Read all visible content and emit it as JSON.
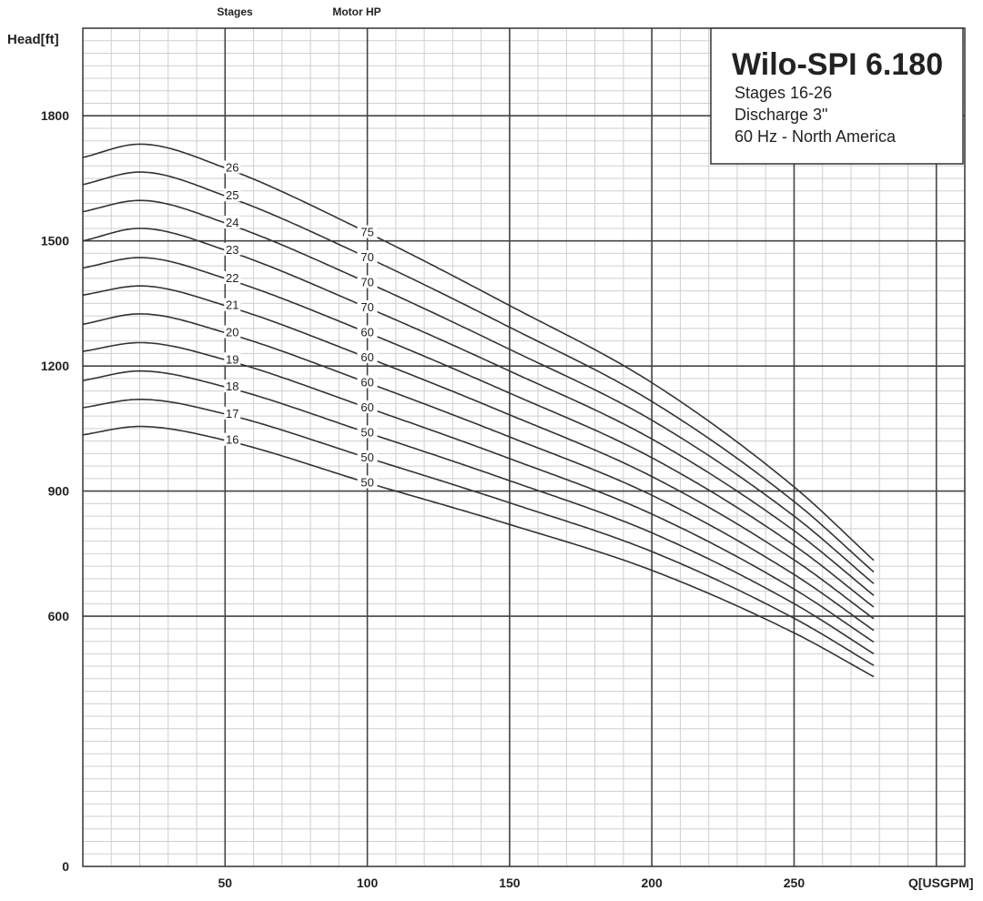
{
  "chart_data": {
    "type": "line",
    "title": "Wilo-SPI 6.180",
    "info_lines": [
      "Stages 16-26",
      "Discharge 3\"",
      "60 Hz - North America"
    ],
    "ylabel": "Head[ft]",
    "xlabel": "Q[USGPM]",
    "top_labels": {
      "stages": "Stages",
      "motor_hp": "Motor HP"
    },
    "xlim": [
      0,
      310
    ],
    "ylim": [
      0,
      2010
    ],
    "x_ticks": [
      50,
      100,
      150,
      200,
      250
    ],
    "y_ticks": [
      0,
      600,
      900,
      1200,
      1500,
      1800
    ],
    "grid": true,
    "stage_label_x": 50,
    "hp_label_x": 100,
    "series": [
      {
        "name": "16",
        "hp": "50",
        "points": [
          [
            0,
            1035
          ],
          [
            20,
            1055
          ],
          [
            50,
            1022
          ],
          [
            100,
            920
          ],
          [
            150,
            820
          ],
          [
            200,
            710
          ],
          [
            250,
            560
          ],
          [
            278,
            455
          ]
        ]
      },
      {
        "name": "17",
        "hp": "50",
        "points": [
          [
            0,
            1100
          ],
          [
            20,
            1120
          ],
          [
            50,
            1085
          ],
          [
            100,
            980
          ],
          [
            150,
            872
          ],
          [
            200,
            755
          ],
          [
            250,
            595
          ],
          [
            278,
            482
          ]
        ]
      },
      {
        "name": "18",
        "hp": "50",
        "points": [
          [
            0,
            1165
          ],
          [
            20,
            1188
          ],
          [
            50,
            1150
          ],
          [
            100,
            1040
          ],
          [
            150,
            925
          ],
          [
            200,
            800
          ],
          [
            250,
            630
          ],
          [
            278,
            510
          ]
        ]
      },
      {
        "name": "19",
        "hp": "60",
        "points": [
          [
            0,
            1235
          ],
          [
            20,
            1256
          ],
          [
            50,
            1215
          ],
          [
            100,
            1100
          ],
          [
            150,
            978
          ],
          [
            200,
            845
          ],
          [
            250,
            665
          ],
          [
            278,
            538
          ]
        ]
      },
      {
        "name": "20",
        "hp": "60",
        "points": [
          [
            0,
            1300
          ],
          [
            20,
            1325
          ],
          [
            50,
            1280
          ],
          [
            100,
            1160
          ],
          [
            150,
            1030
          ],
          [
            200,
            890
          ],
          [
            250,
            700
          ],
          [
            278,
            566
          ]
        ]
      },
      {
        "name": "21",
        "hp": "60",
        "points": [
          [
            0,
            1370
          ],
          [
            20,
            1392
          ],
          [
            50,
            1345
          ],
          [
            100,
            1220
          ],
          [
            150,
            1083
          ],
          [
            200,
            935
          ],
          [
            250,
            735
          ],
          [
            278,
            594
          ]
        ]
      },
      {
        "name": "22",
        "hp": "60",
        "points": [
          [
            0,
            1435
          ],
          [
            20,
            1460
          ],
          [
            50,
            1410
          ],
          [
            100,
            1280
          ],
          [
            150,
            1135
          ],
          [
            200,
            980
          ],
          [
            250,
            770
          ],
          [
            278,
            622
          ]
        ]
      },
      {
        "name": "23",
        "hp": "70",
        "points": [
          [
            0,
            1500
          ],
          [
            20,
            1530
          ],
          [
            50,
            1478
          ],
          [
            100,
            1340
          ],
          [
            150,
            1188
          ],
          [
            200,
            1025
          ],
          [
            250,
            805
          ],
          [
            278,
            650
          ]
        ]
      },
      {
        "name": "24",
        "hp": "70",
        "points": [
          [
            0,
            1570
          ],
          [
            20,
            1597
          ],
          [
            50,
            1543
          ],
          [
            100,
            1400
          ],
          [
            150,
            1240
          ],
          [
            200,
            1070
          ],
          [
            250,
            840
          ],
          [
            278,
            678
          ]
        ]
      },
      {
        "name": "25",
        "hp": "70",
        "points": [
          [
            0,
            1635
          ],
          [
            20,
            1665
          ],
          [
            50,
            1608
          ],
          [
            100,
            1460
          ],
          [
            150,
            1293
          ],
          [
            200,
            1115
          ],
          [
            250,
            875
          ],
          [
            278,
            706
          ]
        ]
      },
      {
        "name": "26",
        "hp": "75",
        "points": [
          [
            0,
            1700
          ],
          [
            20,
            1732
          ],
          [
            50,
            1675
          ],
          [
            100,
            1520
          ],
          [
            150,
            1345
          ],
          [
            200,
            1160
          ],
          [
            250,
            910
          ],
          [
            278,
            734
          ]
        ]
      }
    ]
  }
}
